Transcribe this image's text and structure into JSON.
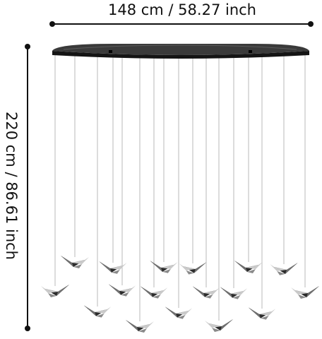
{
  "dimensions": {
    "width_label": "148 cm / 58.27 inch",
    "height_label": "220 cm / 86.61 inch"
  },
  "colors": {
    "dimension_line": "#111111",
    "canopy_top": "#3a3a3a",
    "canopy_side": "#141414",
    "wire": "#b8b8b8",
    "bird_dark": "#2b2b2b",
    "bird_mid": "#6f6f6f",
    "bird_light": "#c9c9c9"
  },
  "product": {
    "type": "pendant-lamp",
    "canopy_shape": "oval",
    "pendant_count": 16,
    "pendant_shape": "bird"
  }
}
